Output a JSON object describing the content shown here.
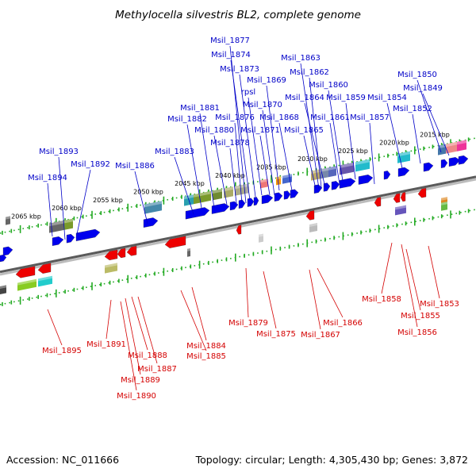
{
  "title": "Methylocella silvestris BL2, complete genome",
  "footer": {
    "accession": "Accession: NC_011666",
    "topology": "Topology: circular; Length: 4,305,430 bp; Genes: 3,872"
  },
  "colors": {
    "forward_label": "#0000c8",
    "reverse_label": "#d40000",
    "forward_gene": "#0000ee",
    "reverse_gene": "#ee0000",
    "tick": "#22aa22",
    "dna_dark": "#5a5a5a",
    "dna_light": "#bcbcbc"
  },
  "kbp_markers": [
    "2015 kbp",
    "2020 kbp",
    "2025 kbp",
    "2030 kbp",
    "2035 kbp",
    "2040 kbp",
    "2045 kbp",
    "2050 kbp",
    "2055 kbp",
    "2060 kbp",
    "2065 kbp"
  ],
  "forward_labels": [
    "Msil_1850",
    "Msil_1849",
    "Msil_1854",
    "Msil_1852",
    "Msil_1857",
    "Msil_1859",
    "Msil_1860",
    "Msil_1861",
    "Msil_1862",
    "Msil_1863",
    "Msil_1864",
    "Msil_1865",
    "Msil_1868",
    "Msil_1869",
    "Msil_1870",
    "Msil_1871",
    "rpsl",
    "Msil_1873",
    "Msil_1874",
    "Msil_1877",
    "Msil_1876",
    "Msil_1878",
    "Msil_1880",
    "Msil_1881",
    "Msil_1882",
    "Msil_1883",
    "Msil_1886",
    "Msil_1892",
    "Msil_1893",
    "Msil_1894"
  ],
  "reverse_labels": [
    "Msil_1853",
    "Msil_1855",
    "Msil_1856",
    "Msil_1858",
    "Msil_1866",
    "Msil_1867",
    "Msil_1875",
    "Msil_1879",
    "Msil_1884",
    "Msil_1885",
    "Msil_1887",
    "Msil_1888",
    "Msil_1889",
    "Msil_1890",
    "Msil_1891",
    "Msil_1895"
  ]
}
